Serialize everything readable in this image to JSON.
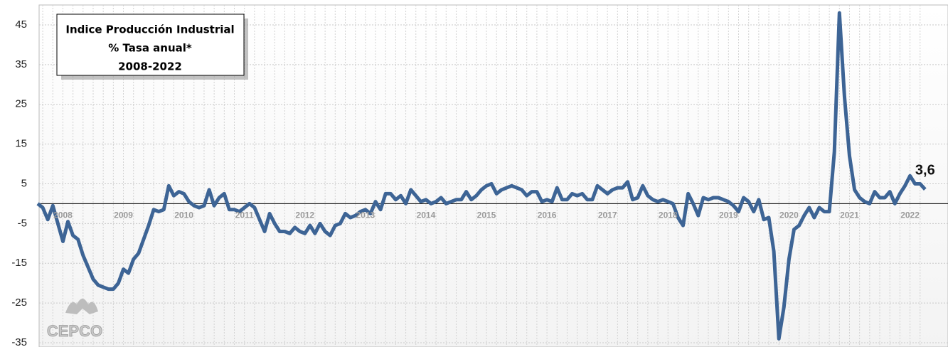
{
  "chart_data": {
    "type": "line",
    "title": [
      "Indice Producción Industrial",
      "% Tasa anual*",
      "2008-2022"
    ],
    "logo": "CEPCO",
    "categories": [
      null,
      null,
      null,
      null,
      null,
      "2008",
      null,
      null,
      null,
      null,
      null,
      null,
      null,
      null,
      null,
      null,
      null,
      "2009",
      null,
      null,
      null,
      null,
      null,
      null,
      null,
      null,
      null,
      null,
      null,
      "2010",
      null,
      null,
      null,
      null,
      null,
      null,
      null,
      null,
      null,
      null,
      null,
      "2011",
      null,
      null,
      null,
      null,
      null,
      null,
      null,
      null,
      null,
      null,
      null,
      "2012",
      null,
      null,
      null,
      null,
      null,
      null,
      null,
      null,
      null,
      null,
      null,
      "2013",
      null,
      null,
      null,
      null,
      null,
      null,
      null,
      null,
      null,
      null,
      null,
      "2014",
      null,
      null,
      null,
      null,
      null,
      null,
      null,
      null,
      null,
      null,
      null,
      "2015",
      null,
      null,
      null,
      null,
      null,
      null,
      null,
      null,
      null,
      null,
      null,
      "2016",
      null,
      null,
      null,
      null,
      null,
      null,
      null,
      null,
      null,
      null,
      null,
      "2017",
      null,
      null,
      null,
      null,
      null,
      null,
      null,
      null,
      null,
      null,
      null,
      "2018",
      null,
      null,
      null,
      null,
      null,
      null,
      null,
      null,
      null,
      null,
      null,
      "2019",
      null,
      null,
      null,
      null,
      null,
      null,
      null,
      null,
      null,
      null,
      null,
      "2020",
      null,
      null,
      null,
      null,
      null,
      null,
      null,
      null,
      null,
      null,
      null,
      "2021",
      null,
      null,
      null,
      null,
      null,
      null,
      null,
      null,
      null,
      null,
      null,
      "2022",
      null,
      null,
      null
    ],
    "series": [
      {
        "color": "#3d6495",
        "values": [
          0,
          -1,
          -4,
          -0.5,
          -5,
          -9.5,
          -4.5,
          -8,
          -9,
          -13,
          -16,
          -19,
          -20.5,
          -21,
          -21.5,
          -21.5,
          -20,
          -16.5,
          -17.5,
          -14,
          -12.5,
          -9,
          -5.5,
          -1.5,
          -2,
          -1.5,
          4.5,
          2,
          3,
          2.5,
          0.5,
          -0.5,
          -1,
          -0.5,
          3.5,
          -0.5,
          1.5,
          2.5,
          -1.5,
          -1.5,
          -2,
          -1,
          0,
          -1,
          -4,
          -7,
          -2.5,
          -5,
          -7,
          -7,
          -7.5,
          -6,
          -7,
          -7.5,
          -5.5,
          -7.5,
          -5,
          -7,
          -8,
          -5.5,
          -5,
          -2.5,
          -3.5,
          -3,
          -2,
          -1.5,
          -2.5,
          0.5,
          -1.5,
          2.5,
          2.5,
          1,
          2,
          0,
          3.5,
          2,
          0.5,
          1,
          0,
          0.5,
          1.5,
          0,
          0.5,
          1,
          1,
          3,
          1,
          2,
          3.5,
          4.5,
          5,
          2.5,
          3.5,
          4,
          4.5,
          4,
          3.5,
          2,
          3,
          3,
          0.5,
          1,
          0.5,
          4,
          1,
          1,
          2.5,
          2,
          2.5,
          1,
          1,
          4.5,
          3.5,
          2.5,
          3.5,
          4,
          4,
          5.5,
          1,
          1.5,
          4.5,
          2,
          1,
          0.5,
          1,
          0.5,
          0,
          -3.5,
          -5.5,
          2.5,
          0,
          -3,
          1.5,
          1,
          1.5,
          1.5,
          1,
          0.5,
          -0.5,
          -2,
          1.5,
          0.5,
          -2,
          1,
          -4,
          -3.5,
          -12,
          -34,
          -26,
          -14,
          -6.5,
          -5.5,
          -3,
          -1,
          -3.5,
          -1,
          -2,
          -2,
          13,
          48,
          27,
          12,
          3.5,
          1.5,
          0.5,
          0,
          3,
          1.5,
          1.5,
          3,
          0,
          2.5,
          4.5,
          7,
          5,
          5,
          3.6
        ],
        "value_labels": [
          null,
          null,
          null,
          null,
          null,
          null,
          null,
          null,
          null,
          null,
          null,
          null,
          null,
          null,
          null,
          null,
          null,
          null,
          null,
          null,
          null,
          null,
          null,
          null,
          null,
          null,
          null,
          null,
          null,
          null,
          null,
          null,
          null,
          null,
          null,
          null,
          null,
          null,
          null,
          null,
          null,
          null,
          null,
          null,
          null,
          null,
          null,
          null,
          null,
          null,
          null,
          null,
          null,
          null,
          null,
          null,
          null,
          null,
          null,
          null,
          null,
          null,
          null,
          null,
          null,
          null,
          null,
          null,
          null,
          null,
          null,
          null,
          null,
          null,
          null,
          null,
          null,
          null,
          null,
          null,
          null,
          null,
          null,
          null,
          null,
          null,
          null,
          null,
          null,
          null,
          null,
          null,
          null,
          null,
          null,
          null,
          null,
          null,
          null,
          null,
          null,
          null,
          null,
          null,
          null,
          null,
          null,
          null,
          null,
          null,
          null,
          null,
          null,
          null,
          null,
          null,
          null,
          null,
          null,
          null,
          null,
          null,
          null,
          null,
          null,
          null,
          null,
          null,
          null,
          null,
          null,
          null,
          null,
          null,
          null,
          null,
          null,
          null,
          null,
          null,
          null,
          null,
          null,
          null,
          null,
          null,
          null,
          null,
          null,
          null,
          null,
          null,
          null,
          null,
          null,
          null,
          null,
          null,
          null,
          null,
          null,
          null,
          null,
          null,
          null,
          null,
          null,
          null,
          null,
          null,
          null,
          null,
          null,
          null,
          null,
          null,
          "3,6"
        ]
      }
    ],
    "ylim": [
      -35,
      50
    ],
    "yticks": [
      -35,
      -25,
      -15,
      -5,
      5,
      15,
      25,
      35,
      45
    ],
    "grid": true
  }
}
